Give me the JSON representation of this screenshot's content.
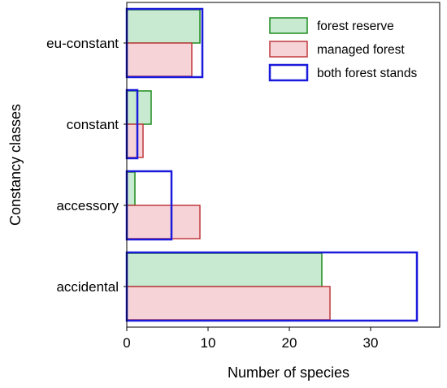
{
  "chart_data": {
    "type": "bar",
    "orientation": "horizontal",
    "categories": [
      "eu-constant",
      "constant",
      "accessory",
      "accidental"
    ],
    "series": [
      {
        "name": "forest reserve",
        "values": [
          9,
          3,
          1,
          24
        ],
        "fill": "#c8ead0",
        "stroke": "#1e8c1e"
      },
      {
        "name": "managed forest",
        "values": [
          8,
          2,
          9,
          25
        ],
        "fill": "#f5d3d6",
        "stroke": "#c0393f"
      },
      {
        "name": "both forest stands",
        "values": [
          9.3,
          1.3,
          5.5,
          35.7
        ],
        "fill": "none",
        "stroke": "#1a1adc"
      }
    ],
    "xlabel": "Number of species",
    "ylabel": "Constancy classes",
    "xlim": [
      0,
      38.5
    ],
    "xticks": [
      0,
      10,
      20,
      30
    ],
    "grid": false,
    "legend_position": "top-right"
  }
}
